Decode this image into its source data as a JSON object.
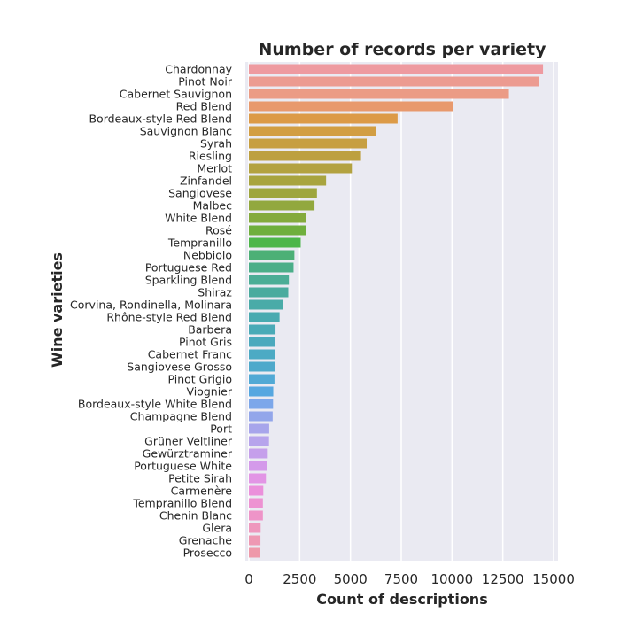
{
  "chart_data": {
    "type": "bar",
    "orientation": "horizontal",
    "title": "Number of records per variety",
    "xlabel": "Count of descriptions",
    "ylabel": "Wine varieties",
    "xlim": [
      0,
      15200
    ],
    "xticks": [
      0,
      2500,
      5000,
      7500,
      10000,
      12500,
      15000
    ],
    "grid": true,
    "categories": [
      "Chardonnay",
      "Pinot Noir",
      "Cabernet Sauvignon",
      "Red Blend",
      "Bordeaux-style Red Blend",
      "Sauvignon Blanc",
      "Syrah",
      "Riesling",
      "Merlot",
      "Zinfandel",
      "Sangiovese",
      "Malbec",
      "White Blend",
      "Rosé",
      "Tempranillo",
      "Nebbiolo",
      "Portuguese Red",
      "Sparkling Blend",
      "Shiraz",
      "Corvina, Rondinella, Molinara",
      "Rhône-style Red Blend",
      "Barbera",
      "Pinot Gris",
      "Cabernet Franc",
      "Sangiovese Grosso",
      "Pinot Grigio",
      "Viognier",
      "Bordeaux-style White Blend",
      "Champagne Blend",
      "Port",
      "Grüner Veltliner",
      "Gewürztraminer",
      "Portuguese White",
      "Petite Sirah",
      "Carmenère",
      "Tempranillo Blend",
      "Chenin Blanc",
      "Glera",
      "Grenache",
      "Prosecco"
    ],
    "values": [
      14480,
      14290,
      12800,
      10060,
      7320,
      6270,
      5800,
      5520,
      5070,
      3800,
      3350,
      3230,
      2830,
      2820,
      2550,
      2240,
      2200,
      1970,
      1940,
      1660,
      1510,
      1310,
      1300,
      1300,
      1290,
      1260,
      1200,
      1190,
      1170,
      1000,
      990,
      930,
      900,
      840,
      710,
      690,
      690,
      580,
      570,
      560
    ],
    "colors": [
      "#ee9aa0",
      "#ec9b91",
      "#eb9b85",
      "#e8996d",
      "#dc9a47",
      "#d29e43",
      "#c79f41",
      "#bda040",
      "#b3a240",
      "#a8a43f",
      "#9ea63e",
      "#92a83e",
      "#84aa3d",
      "#6faf3d",
      "#4db64a",
      "#4cb076",
      "#4bae89",
      "#4bad96",
      "#4aab9e",
      "#49aba8",
      "#49aab0",
      "#4aaab7",
      "#4ba9bd",
      "#4caac4",
      "#4ea9cb",
      "#51a9d5",
      "#56a7e0",
      "#7ca7ea",
      "#93a6ea",
      "#a7a5eb",
      "#b7a4ec",
      "#c59feb",
      "#d49aea",
      "#e295e5",
      "#eb90db",
      "#ed92d2",
      "#ee94c8",
      "#ee97bd",
      "#ee98b3",
      "#ee99aa"
    ]
  }
}
